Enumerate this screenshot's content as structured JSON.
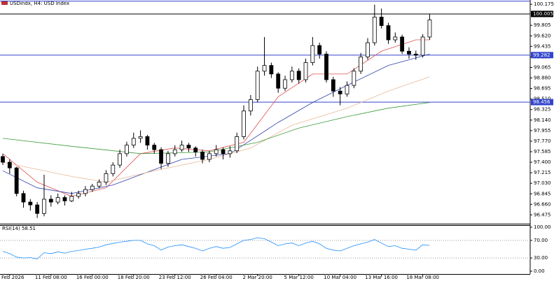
{
  "chart_data": {
    "type": "candlestick",
    "title": "USDindx, H4:  USD Index",
    "categories": [
      null,
      "Feb 2026",
      null,
      null,
      null,
      null,
      null,
      "11 Feb 08:00",
      null,
      null,
      null,
      null,
      null,
      "16 Feb 00:00",
      null,
      null,
      null,
      null,
      null,
      "18 Feb 20:00",
      null,
      null,
      null,
      null,
      null,
      "23 Feb 12:00",
      null,
      null,
      null,
      null,
      null,
      "26 Feb 04:00",
      null,
      null,
      null,
      null,
      null,
      "2 Mar 20:00",
      null,
      null,
      null,
      null,
      null,
      "5 Mar 12:00",
      null,
      null,
      null,
      null,
      null,
      "10 Mar 04:00",
      null,
      null,
      null,
      null,
      null,
      "13 Mar 16:00",
      null,
      null,
      null,
      null,
      null,
      "18 Mar 08:00",
      null
    ],
    "open": [
      97.5,
      97.4,
      97.3,
      96.85,
      96.7,
      96.65,
      96.5,
      96.75,
      96.7,
      96.78,
      96.72,
      96.8,
      96.85,
      96.92,
      96.98,
      97.05,
      97.2,
      97.35,
      97.55,
      97.7,
      97.82,
      97.85,
      97.7,
      97.62,
      97.38,
      97.55,
      97.62,
      97.7,
      97.65,
      97.58,
      97.45,
      97.55,
      97.62,
      97.55,
      97.6,
      97.85,
      98.3,
      98.5,
      99.0,
      99.1,
      98.95,
      98.7,
      98.85,
      99.0,
      98.85,
      99.15,
      99.45,
      99.3,
      98.85,
      98.65,
      98.6,
      98.75,
      99.0,
      99.25,
      99.5,
      99.95,
      99.8,
      99.55,
      99.6,
      99.35,
      99.3,
      99.28,
      99.6
    ],
    "high": [
      97.55,
      97.45,
      97.32,
      96.9,
      96.75,
      96.7,
      97.18,
      96.82,
      96.85,
      96.82,
      96.88,
      96.9,
      96.98,
      97.02,
      97.1,
      97.26,
      97.4,
      97.62,
      97.76,
      97.92,
      97.96,
      97.88,
      97.74,
      97.66,
      97.6,
      97.7,
      97.78,
      97.74,
      97.68,
      97.62,
      97.6,
      97.7,
      97.66,
      97.68,
      97.92,
      98.4,
      98.58,
      99.08,
      99.6,
      99.15,
      98.98,
      98.92,
      99.08,
      99.05,
      99.22,
      99.6,
      99.5,
      99.35,
      98.9,
      98.72,
      98.82,
      99.05,
      99.32,
      99.58,
      100.17,
      100.1,
      99.85,
      99.68,
      99.64,
      99.42,
      99.36,
      99.65,
      100.0
    ],
    "low": [
      97.35,
      97.2,
      96.8,
      96.6,
      96.55,
      96.42,
      96.45,
      96.62,
      96.66,
      96.64,
      96.7,
      96.76,
      96.8,
      96.88,
      96.94,
      97.0,
      97.15,
      97.3,
      97.5,
      97.65,
      97.74,
      97.62,
      97.55,
      97.28,
      97.32,
      97.5,
      97.58,
      97.58,
      97.5,
      97.38,
      97.4,
      97.5,
      97.45,
      97.48,
      97.56,
      97.8,
      98.22,
      98.45,
      98.92,
      98.88,
      98.62,
      98.65,
      98.8,
      98.78,
      98.8,
      99.1,
      99.22,
      98.8,
      98.55,
      98.4,
      98.55,
      98.7,
      98.95,
      99.2,
      99.45,
      99.75,
      99.48,
      99.5,
      99.3,
      99.22,
      99.2,
      99.24,
      99.55
    ],
    "close": [
      97.4,
      97.3,
      96.85,
      96.7,
      96.65,
      96.5,
      96.75,
      96.7,
      96.78,
      96.72,
      96.8,
      96.85,
      96.92,
      96.98,
      97.05,
      97.2,
      97.35,
      97.55,
      97.7,
      97.82,
      97.85,
      97.7,
      97.62,
      97.38,
      97.55,
      97.62,
      97.7,
      97.65,
      97.58,
      97.45,
      97.55,
      97.62,
      97.55,
      97.6,
      97.85,
      98.3,
      98.5,
      99.0,
      99.1,
      98.95,
      98.7,
      98.85,
      99.0,
      98.85,
      99.15,
      99.45,
      99.3,
      98.85,
      98.65,
      98.6,
      98.75,
      99.0,
      99.25,
      99.5,
      99.95,
      99.8,
      99.55,
      99.6,
      99.35,
      99.3,
      99.28,
      99.6,
      99.9
    ],
    "moving_averages": [
      {
        "color": "#e05050",
        "x": [
          0,
          5,
          10,
          15,
          20,
          25,
          30,
          35,
          40,
          45,
          50,
          55,
          60,
          62
        ],
        "values": [
          97.55,
          97.05,
          96.8,
          96.95,
          97.55,
          97.65,
          97.6,
          97.75,
          98.55,
          98.95,
          98.95,
          99.35,
          99.55,
          99.55
        ]
      },
      {
        "color": "#3040b0",
        "x": [
          0,
          5,
          10,
          16,
          26,
          33,
          40,
          45,
          50,
          56,
          62
        ],
        "values": [
          97.25,
          96.95,
          96.85,
          97.0,
          97.45,
          97.55,
          98.1,
          98.45,
          98.75,
          99.1,
          99.3
        ]
      },
      {
        "color": "#e8b898",
        "x": [
          0,
          10,
          15,
          22,
          30,
          36,
          42,
          50,
          56,
          62
        ],
        "values": [
          97.4,
          97.15,
          97.05,
          97.25,
          97.45,
          97.65,
          98.05,
          98.35,
          98.65,
          98.9
        ]
      },
      {
        "color": "#3a9a3a",
        "x": [
          0,
          10,
          20,
          30,
          37,
          43,
          50,
          56,
          62
        ],
        "values": [
          97.82,
          97.68,
          97.55,
          97.58,
          97.75,
          98.0,
          98.2,
          98.35,
          98.45
        ]
      }
    ],
    "ylim": [
      96.32,
      100.25
    ],
    "yticks": [
      100.175,
      99.805,
      {
        "value": 99.62,
        "label": "99.620"
      },
      99.435,
      {
        "value": 99.25,
        "label": "99.250"
      },
      99.065,
      {
        "value": 98.88,
        "label": "98.880"
      },
      98.695,
      {
        "value": 98.51,
        "label": "98.510"
      },
      98.325,
      {
        "value": 98.14,
        "label": "98.140"
      },
      97.955,
      {
        "value": 97.77,
        "label": "97.770"
      },
      97.585,
      {
        "value": 97.4,
        "label": "97.400"
      },
      97.215,
      {
        "value": 97.03,
        "label": "97.030"
      },
      96.845,
      {
        "value": 96.66,
        "label": "96.660"
      },
      96.475
    ],
    "levels": [
      {
        "value": 100.23,
        "color": "#3344cc"
      },
      {
        "value": 100.005,
        "label": "100.005",
        "color": "#000000"
      },
      {
        "value": 99.282,
        "label": "99.282",
        "color": "#3344cc"
      },
      {
        "value": 98.456,
        "label": "98.456",
        "color": "#3344cc"
      }
    ],
    "rsi": {
      "title": "RSI(14) 58.51",
      "color": "#1e90ff",
      "ylim": [
        0,
        100
      ],
      "yticks": [
        {
          "value": 100,
          "label": "100.00"
        },
        {
          "value": 70,
          "label": "70.00"
        },
        {
          "value": 30,
          "label": "30.00"
        },
        {
          "value": 0,
          "label": "0.00"
        }
      ],
      "levels": [
        70,
        30
      ],
      "values": [
        45,
        40,
        32,
        30,
        31,
        28,
        42,
        40,
        44,
        41,
        45,
        47,
        50,
        52,
        55,
        60,
        63,
        66,
        68,
        70,
        70,
        62,
        58,
        48,
        55,
        58,
        60,
        56,
        52,
        46,
        52,
        56,
        52,
        54,
        62,
        70,
        72,
        76,
        74,
        66,
        58,
        62,
        64,
        58,
        64,
        68,
        62,
        52,
        48,
        46,
        52,
        58,
        62,
        66,
        72,
        64,
        56,
        58,
        52,
        50,
        48,
        60,
        58.51
      ]
    }
  }
}
